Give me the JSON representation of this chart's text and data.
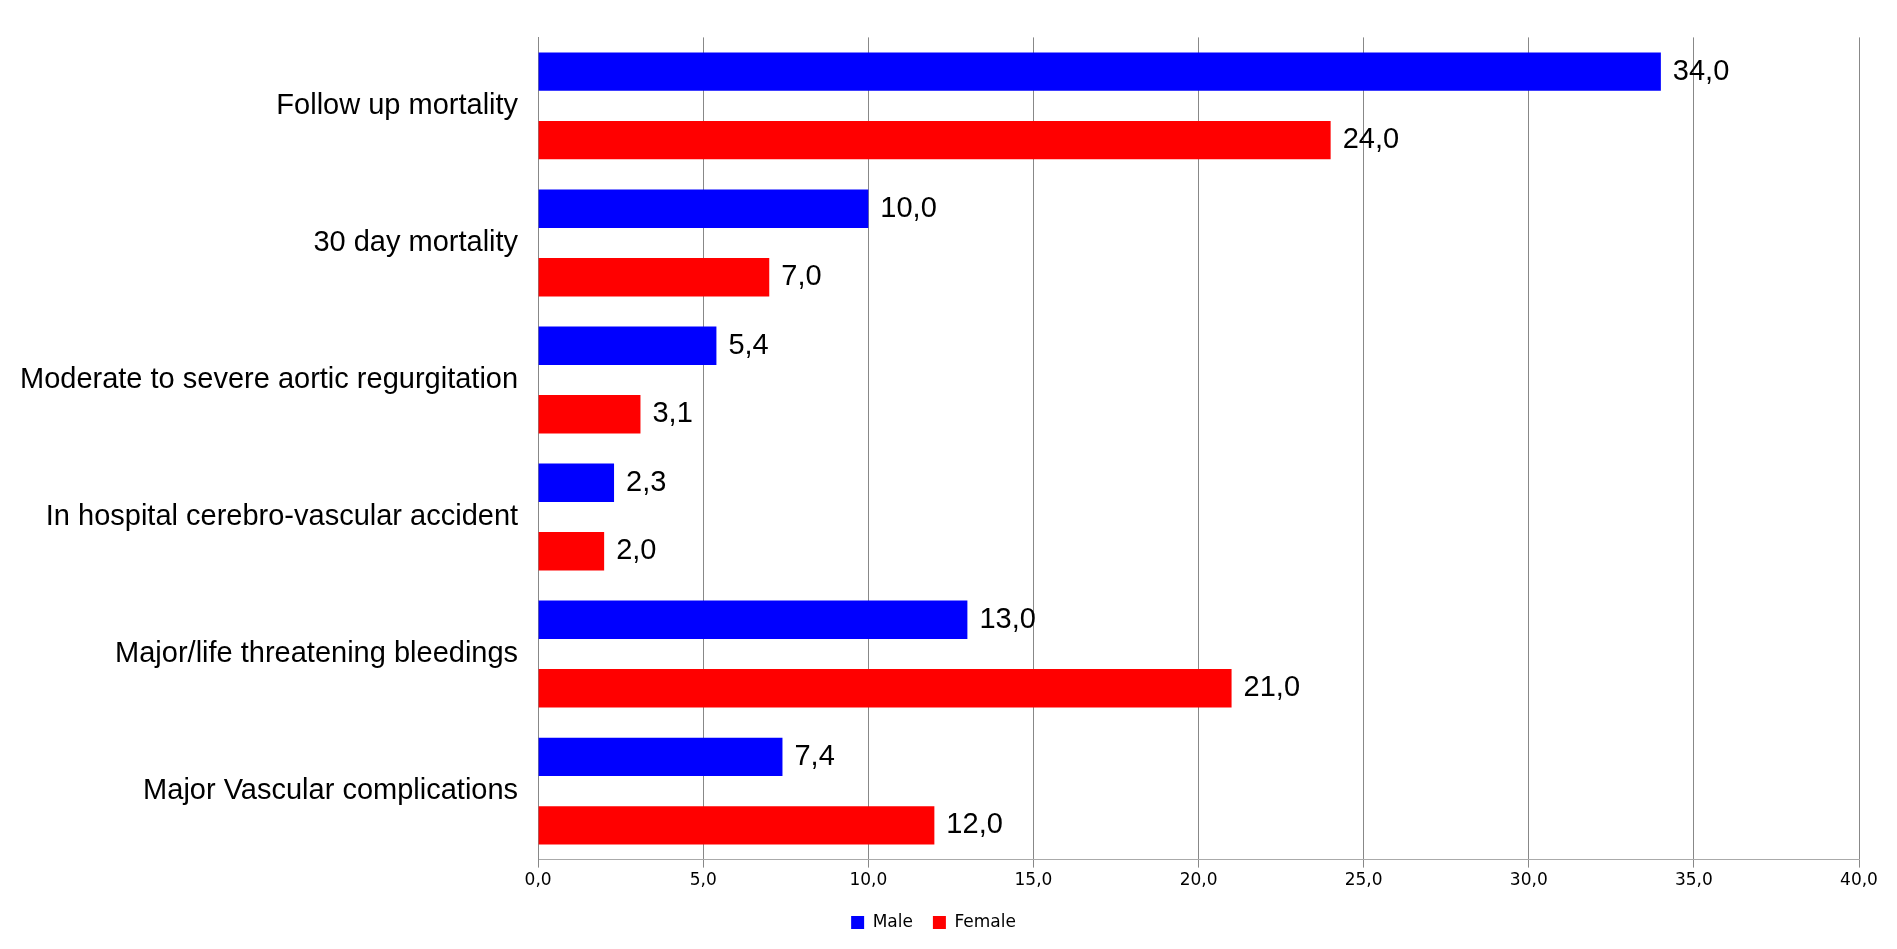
{
  "chart_data": {
    "type": "bar",
    "orientation": "horizontal",
    "categories": [
      "Follow up mortality",
      "30 day mortality",
      "Moderate to severe aortic regurgitation",
      "In hospital cerebro-vascular accident",
      "Major/life threatening bleedings",
      "Major Vascular complications"
    ],
    "series": [
      {
        "name": "Male",
        "color": "#0000ff",
        "values": [
          34.0,
          10.0,
          5.4,
          2.3,
          13.0,
          7.4
        ],
        "value_labels": [
          "34,0",
          "10,0",
          "5,4",
          "2,3",
          "13,0",
          "7,4"
        ]
      },
      {
        "name": "Female",
        "color": "#ff0000",
        "values": [
          24.0,
          7.0,
          3.1,
          2.0,
          21.0,
          12.0
        ],
        "value_labels": [
          "24,0",
          "7,0",
          "3,1",
          "2,0",
          "21,0",
          "12,0"
        ]
      }
    ],
    "xlim": [
      0,
      40
    ],
    "xticks": [
      {
        "value": 0,
        "label": "0,0"
      },
      {
        "value": 5,
        "label": "5,0"
      },
      {
        "value": 10,
        "label": "10,0"
      },
      {
        "value": 15,
        "label": "15,0"
      },
      {
        "value": 20,
        "label": "20,0"
      },
      {
        "value": 25,
        "label": "25,0"
      },
      {
        "value": 30,
        "label": "30,0"
      },
      {
        "value": 35,
        "label": "35,0"
      },
      {
        "value": 40,
        "label": "40,0"
      }
    ],
    "grid": "x",
    "legend": "bottom"
  }
}
